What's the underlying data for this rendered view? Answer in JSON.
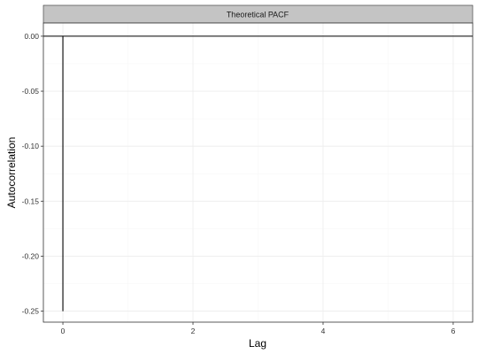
{
  "chart_data": {
    "type": "bar",
    "title": "",
    "facet_label": "Theoretical PACF",
    "xlabel": "Lag",
    "ylabel": "Autocorrelation",
    "xlim": [
      -0.3,
      6.3
    ],
    "ylim": [
      -0.26,
      0.012
    ],
    "x_ticks": [
      0,
      2,
      4,
      6
    ],
    "y_ticks": [
      0.0,
      -0.05,
      -0.1,
      -0.15,
      -0.2,
      -0.25
    ],
    "x_tick_labels": [
      "0",
      "2",
      "4",
      "6"
    ],
    "y_tick_labels": [
      "0.00",
      "-0.05",
      "-0.10",
      "-0.15",
      "-0.20",
      "-0.25"
    ],
    "hline_y": 0,
    "grid": true,
    "series": [
      {
        "lags": [
          0,
          1,
          2,
          3,
          4,
          5,
          6
        ],
        "values": [
          -0.25,
          0,
          0,
          0,
          0,
          0,
          0
        ]
      }
    ]
  },
  "colors": {
    "strip_bg": "#c4c4c4",
    "panel_border": "#333333",
    "grid_major": "#ececec",
    "grid_minor": "#f6f6f6",
    "segment": "#000000"
  }
}
